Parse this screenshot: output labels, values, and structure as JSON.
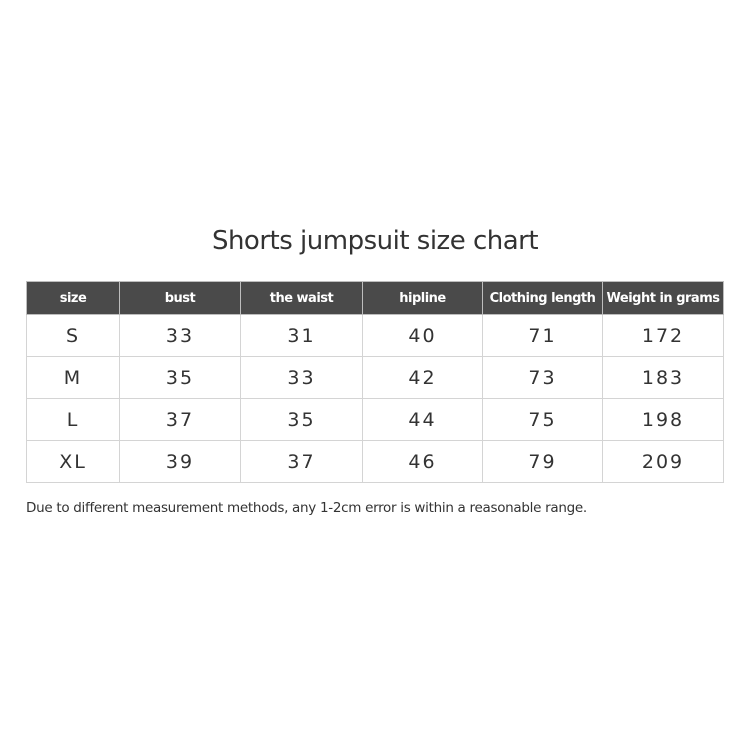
{
  "title": "Shorts jumpsuit size chart",
  "table": {
    "headers": [
      "size",
      "bust",
      "the waist",
      "hipline",
      "Clothing length",
      "Weight in grams"
    ],
    "rows": [
      [
        "S",
        "33",
        "31",
        "40",
        "71",
        "172"
      ],
      [
        "M",
        "35",
        "33",
        "42",
        "73",
        "183"
      ],
      [
        "L",
        "37",
        "35",
        "44",
        "75",
        "198"
      ],
      [
        "XL",
        "39",
        "37",
        "46",
        "79",
        "209"
      ]
    ]
  },
  "note": "Due to different measurement methods, any 1-2cm error is within a reasonable range.",
  "colors": {
    "header_bg": "#4a4a4a",
    "header_text": "#ffffff",
    "border": "#d4d4d4"
  }
}
